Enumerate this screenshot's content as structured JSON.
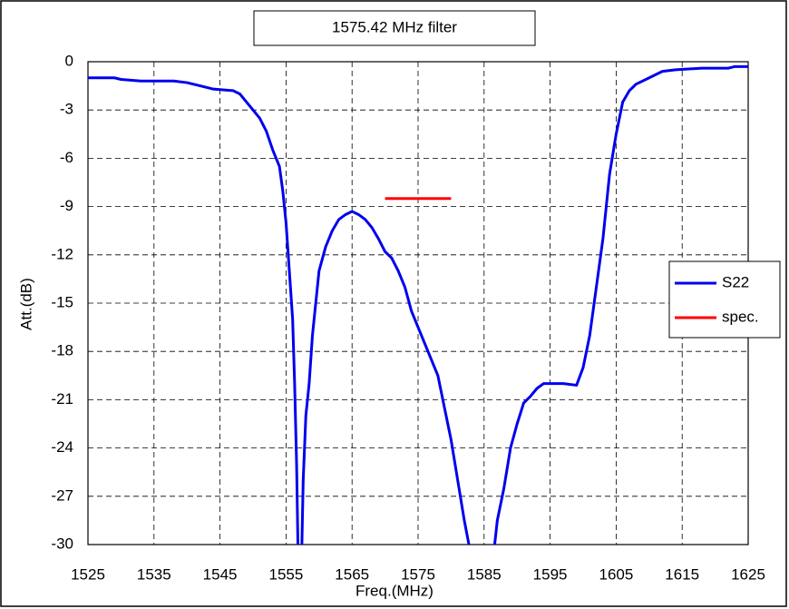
{
  "chart_data": {
    "type": "line",
    "title": "1575.42 MHz filter",
    "xlabel": "Freq.(MHz)",
    "ylabel": "Att.(dB)",
    "xlim": [
      1525,
      1625
    ],
    "xticks": [
      1525,
      1535,
      1545,
      1555,
      1565,
      1575,
      1585,
      1595,
      1605,
      1615,
      1625
    ],
    "ylim": [
      -30,
      0
    ],
    "yticks": [
      0,
      -3,
      -6,
      -9,
      -12,
      -15,
      -18,
      -21,
      -24,
      -27,
      -30
    ],
    "grid": true,
    "legend": "right",
    "series": [
      {
        "name": "S22",
        "color": "#0000ee",
        "x": [
          1525,
          1529,
          1530,
          1533,
          1538,
          1540,
          1542,
          1544,
          1547,
          1548,
          1549,
          1550,
          1551,
          1552,
          1553,
          1554,
          1554.5,
          1555,
          1555.5,
          1556,
          1556.3,
          1556.6,
          1556.8,
          null,
          1557.4,
          1557.6,
          1558,
          1558.5,
          1559,
          1559.5,
          1560,
          1561,
          1562,
          1563,
          1564,
          1565,
          1566,
          1567,
          1568,
          1569,
          1570,
          1571,
          1572,
          1573,
          1574,
          1575,
          1576,
          1577,
          1578,
          1579,
          1580,
          1581,
          1582,
          1582.7,
          null,
          1586.6,
          1587,
          1588,
          1589,
          1590,
          1591,
          1592,
          1593,
          1594,
          1597,
          1599,
          1600,
          1601,
          1602,
          1603,
          1604,
          1605,
          1606,
          1607,
          1608,
          1610,
          1612,
          1614,
          1618,
          1622,
          1623,
          1625
        ],
        "values": [
          -1,
          -1,
          -1.1,
          -1.2,
          -1.2,
          -1.3,
          -1.5,
          -1.7,
          -1.8,
          -2,
          -2.5,
          -3,
          -3.5,
          -4.3,
          -5.5,
          -6.5,
          -8,
          -10,
          -13,
          -16,
          -20,
          -25,
          -30,
          null,
          -30,
          -26,
          -22,
          -20,
          -17,
          -15,
          -13,
          -11.5,
          -10.5,
          -9.8,
          -9.5,
          -9.3,
          -9.5,
          -9.8,
          -10.3,
          -11,
          -11.8,
          -12.2,
          -13,
          -14,
          -15.5,
          -16.5,
          -17.5,
          -18.5,
          -19.5,
          -21.5,
          -23.5,
          -26,
          -28.5,
          -30,
          null,
          -30,
          -28.5,
          -26.5,
          -24,
          -22.5,
          -21.2,
          -20.8,
          -20.3,
          -20,
          -20,
          -20.1,
          -19,
          -17,
          -14,
          -11,
          -7,
          -4.5,
          -2.5,
          -1.8,
          -1.4,
          -1,
          -0.6,
          -0.5,
          -0.4,
          -0.4,
          -0.3,
          -0.3
        ]
      },
      {
        "name": "spec.",
        "color": "#ff0000",
        "x": [
          1570,
          1580
        ],
        "values": [
          -8.5,
          -8.5
        ]
      }
    ]
  }
}
